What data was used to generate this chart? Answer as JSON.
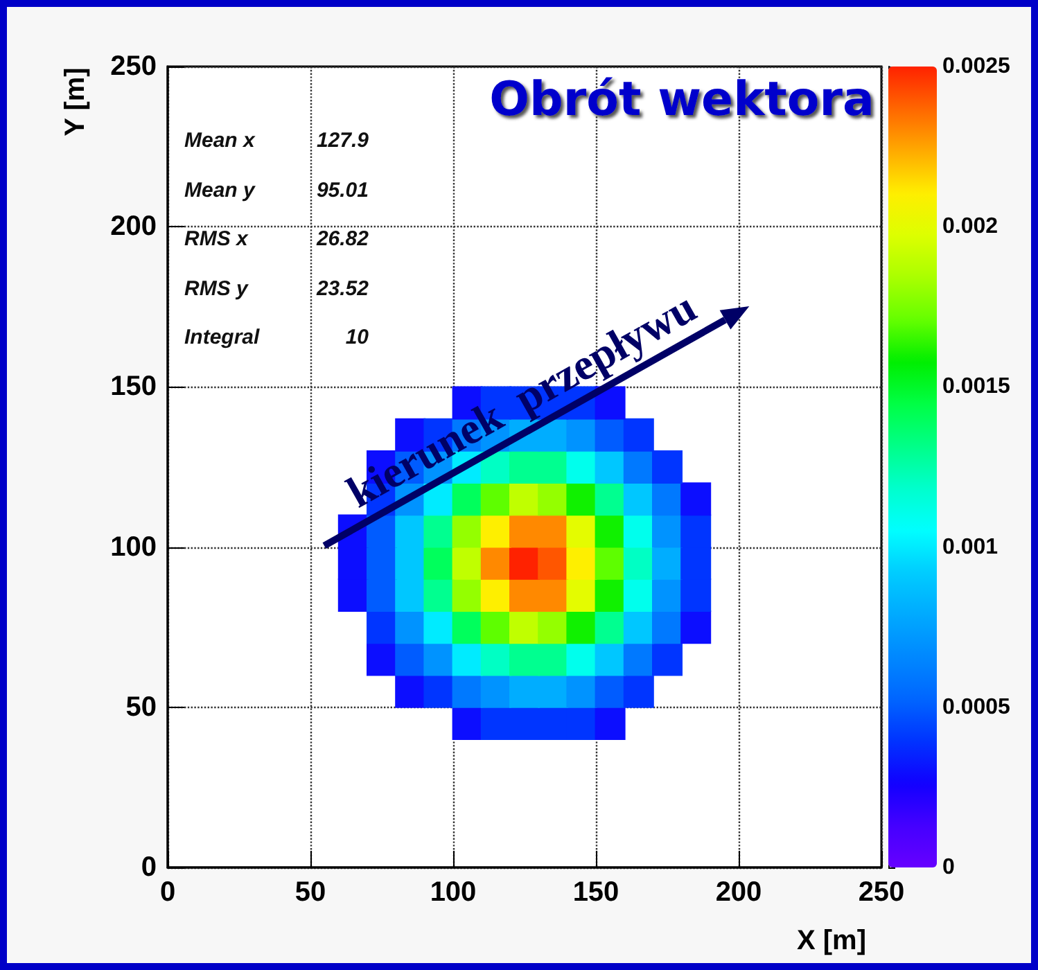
{
  "chart_data": {
    "type": "scatter",
    "title": "Obrót wektora",
    "xlabel": "X [m]",
    "ylabel": "Y [m]",
    "marker": "square",
    "grid": true,
    "xlim": [
      0,
      250
    ],
    "ylim": [
      0,
      250
    ],
    "xticks": [
      0,
      50,
      100,
      150,
      200,
      250
    ],
    "yticks": [
      0,
      50,
      100,
      150,
      200,
      250
    ],
    "clim": [
      0,
      0.0025
    ],
    "cticks": [
      0,
      0.0005,
      0.001,
      0.0015,
      0.002,
      0.0025
    ],
    "annotations": [
      "Mean x 127.9",
      "Mean y 95.01",
      "RMS x 26.82",
      "RMS y 23.52",
      "Integral 10",
      {
        "text": "kierunek  przepływu",
        "x": 124,
        "y": 146
      }
    ],
    "x": [
      105,
      115,
      125,
      135,
      145,
      155,
      85,
      95,
      105,
      115,
      125,
      135,
      145,
      155,
      165,
      75,
      85,
      95,
      105,
      115,
      125,
      135,
      145,
      155,
      165,
      175,
      75,
      85,
      95,
      105,
      115,
      125,
      135,
      145,
      155,
      165,
      175,
      185,
      65,
      75,
      85,
      95,
      105,
      115,
      125,
      135,
      145,
      155,
      165,
      175,
      185,
      65,
      75,
      85,
      95,
      105,
      115,
      125,
      135,
      145,
      155,
      165,
      175,
      185,
      65,
      75,
      85,
      95,
      105,
      115,
      125,
      135,
      145,
      155,
      165,
      175,
      185,
      75,
      85,
      95,
      105,
      115,
      125,
      135,
      145,
      155,
      165,
      175,
      185,
      75,
      85,
      95,
      105,
      115,
      125,
      135,
      145,
      155,
      165,
      175,
      85,
      95,
      105,
      115,
      125,
      135,
      145,
      155,
      165,
      105,
      115,
      125,
      135,
      145,
      155
    ],
    "values": [
      45,
      45,
      45,
      45,
      45,
      45,
      55,
      55,
      55,
      55,
      55,
      55,
      55,
      55,
      55,
      65,
      65,
      65,
      65,
      65,
      65,
      65,
      65,
      65,
      65,
      65,
      75,
      75,
      75,
      75,
      75,
      75,
      75,
      75,
      75,
      75,
      75,
      75,
      85,
      85,
      85,
      85,
      85,
      85,
      85,
      85,
      85,
      85,
      85,
      85,
      85,
      95,
      95,
      95,
      95,
      95,
      95,
      95,
      95,
      95,
      95,
      95,
      95,
      95,
      105,
      105,
      105,
      105,
      105,
      105,
      105,
      105,
      105,
      105,
      105,
      105,
      105,
      115,
      115,
      115,
      115,
      115,
      115,
      115,
      115,
      115,
      115,
      115,
      115,
      125,
      125,
      125,
      125,
      125,
      125,
      125,
      125,
      125,
      125,
      125,
      135,
      135,
      135,
      135,
      135,
      135,
      135,
      135,
      135,
      145,
      145,
      145,
      145,
      145,
      145
    ],
    "cvalues": [
      0.0003,
      0.0004,
      0.0004,
      0.0004,
      0.0004,
      0.0003,
      0.0003,
      0.0004,
      0.0006,
      0.0007,
      0.0008,
      0.0008,
      0.0007,
      0.0005,
      0.0004,
      0.0003,
      0.0005,
      0.0007,
      0.001,
      0.0012,
      0.0013,
      0.0013,
      0.0011,
      0.0009,
      0.0006,
      0.0004,
      0.0004,
      0.0007,
      0.001,
      0.0014,
      0.0017,
      0.0019,
      0.0018,
      0.0016,
      0.0013,
      0.0009,
      0.0006,
      0.0003,
      0.0003,
      0.0005,
      0.0009,
      0.0013,
      0.0018,
      0.0021,
      0.0023,
      0.0023,
      0.002,
      0.0016,
      0.0011,
      0.0007,
      0.0004,
      0.0003,
      0.0005,
      0.0009,
      0.0014,
      0.0019,
      0.0023,
      0.0025,
      0.0024,
      0.0021,
      0.0017,
      0.0012,
      0.0008,
      0.0004,
      0.0003,
      0.0005,
      0.0009,
      0.0013,
      0.0018,
      0.0021,
      0.0023,
      0.0023,
      0.002,
      0.0016,
      0.0011,
      0.0007,
      0.0004,
      0.0004,
      0.0007,
      0.001,
      0.0014,
      0.0017,
      0.0019,
      0.0018,
      0.0016,
      0.0013,
      0.0009,
      0.0006,
      0.0003,
      0.0003,
      0.0005,
      0.0007,
      0.001,
      0.0012,
      0.0013,
      0.0013,
      0.0011,
      0.0009,
      0.0006,
      0.0004,
      0.0003,
      0.0004,
      0.0006,
      0.0007,
      0.0008,
      0.0008,
      0.0007,
      0.0005,
      0.0004,
      0.0003,
      0.0004,
      0.0004,
      0.0004,
      0.0004,
      0.0003
    ]
  }
}
